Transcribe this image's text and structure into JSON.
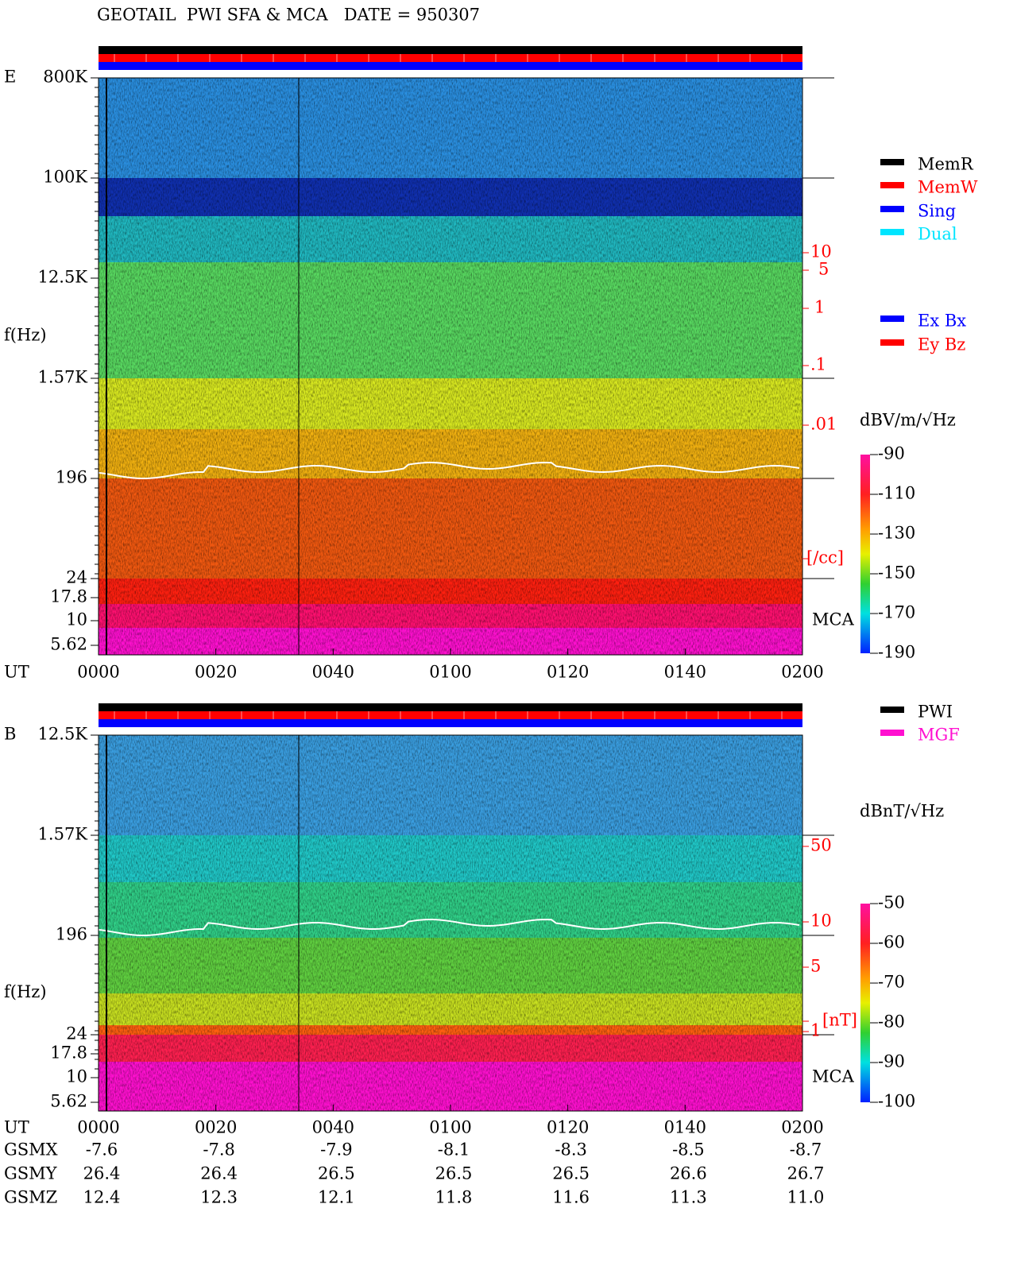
{
  "header": {
    "title": "GEOTAIL  PWI SFA & MCA   DATE = 950307"
  },
  "legend": {
    "modes": [
      {
        "name": "MemR",
        "color": "#000000"
      },
      {
        "name": "MemW",
        "color": "#ff0000"
      },
      {
        "name": "Sing",
        "color": "#0000ff"
      },
      {
        "name": "Dual",
        "color": "#00e5ff"
      }
    ],
    "components": [
      {
        "name": "Ex Bx",
        "color": "#0000ff"
      },
      {
        "name": "Ey Bz",
        "color": "#ff0000"
      }
    ],
    "sources": [
      {
        "name": "PWI",
        "color": "#000000"
      },
      {
        "name": "MGF",
        "color": "#ff10d0"
      }
    ]
  },
  "panels": [
    {
      "label": "E",
      "ylabel": "f(Hz)",
      "freq_ticks": [
        "800K",
        "100K",
        "12.5K",
        "1.57K",
        "196",
        "24",
        "17.8",
        "10",
        "5.62"
      ],
      "right_labels": [
        "10",
        "5",
        "1",
        ".1",
        ".01",
        "[/cc]"
      ],
      "mca": "MCA",
      "time_label": "UT",
      "time_ticks": [
        "0000",
        "0020",
        "0040",
        "0100",
        "0120",
        "0140",
        "0200"
      ],
      "colorbar": {
        "unit": "dBV/m/√Hz",
        "ticks": [
          "-90",
          "-110",
          "-130",
          "-150",
          "-170",
          "-190"
        ]
      }
    },
    {
      "label": "B",
      "ylabel": "f(Hz)",
      "freq_ticks": [
        "12.5K",
        "1.57K",
        "196",
        "24",
        "17.8",
        "10",
        "5.62"
      ],
      "right_labels": [
        "50",
        "10",
        "5",
        "1",
        "[nT]"
      ],
      "mca": "MCA",
      "time_label": "UT",
      "time_ticks": [
        "0000",
        "0020",
        "0040",
        "0100",
        "0120",
        "0140",
        "0200"
      ],
      "colorbar": {
        "unit": "dBnT/√Hz",
        "ticks": [
          "-50",
          "-60",
          "-70",
          "-80",
          "-90",
          "-100"
        ]
      }
    }
  ],
  "orbit": [
    {
      "label": "GSMX",
      "values": [
        "-7.6",
        "-7.8",
        "-7.9",
        "-8.1",
        "-8.3",
        "-8.5",
        "-8.7"
      ]
    },
    {
      "label": "GSMY",
      "values": [
        "26.4",
        "26.4",
        "26.5",
        "26.5",
        "26.5",
        "26.6",
        "26.7"
      ]
    },
    {
      "label": "GSMZ",
      "values": [
        "12.4",
        "12.3",
        "12.1",
        "11.8",
        "11.6",
        "11.3",
        "11.0"
      ]
    }
  ]
}
